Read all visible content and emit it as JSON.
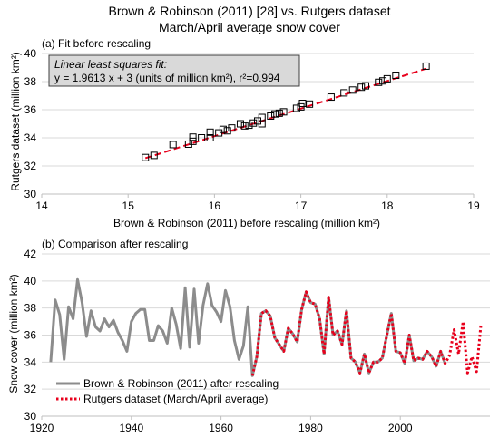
{
  "figure": {
    "title": "Brown & Robinson (2011) [28] vs. Rutgers dataset",
    "subtitle": "March/April average snow cover"
  },
  "chart_data": [
    {
      "id": "a",
      "type": "scatter",
      "panel_label": "(a) Fit before rescaling",
      "xlabel": "Brown & Robinson (2011) before rescaling (million km²)",
      "ylabel": "Rutgers dataset (million km²)",
      "xlim": [
        14,
        19
      ],
      "ylim": [
        30,
        40
      ],
      "xticks": [
        14,
        15,
        16,
        17,
        18,
        19
      ],
      "yticks": [
        30,
        32,
        34,
        36,
        38,
        40
      ],
      "grid": "horizontal",
      "annotation": {
        "line1": "Linear least squares fit:",
        "line2": "y = 1.9613 x + 3 (units of million km²), r²=0.994"
      },
      "fit": {
        "slope": 1.9613,
        "intercept": 3,
        "x_range": [
          15.2,
          18.45
        ],
        "color": "#e8001c"
      },
      "points": [
        [
          15.2,
          32.6
        ],
        [
          15.3,
          32.75
        ],
        [
          15.52,
          33.52
        ],
        [
          15.7,
          33.55
        ],
        [
          15.75,
          33.75
        ],
        [
          15.75,
          34.05
        ],
        [
          15.85,
          34.0
        ],
        [
          15.95,
          34.0
        ],
        [
          15.95,
          34.4
        ],
        [
          16.05,
          34.35
        ],
        [
          16.1,
          34.6
        ],
        [
          16.15,
          34.5
        ],
        [
          16.2,
          34.7
        ],
        [
          16.3,
          35.0
        ],
        [
          16.35,
          34.85
        ],
        [
          16.4,
          34.9
        ],
        [
          16.45,
          35.05
        ],
        [
          16.5,
          35.2
        ],
        [
          16.55,
          35.0
        ],
        [
          16.55,
          35.45
        ],
        [
          16.65,
          35.55
        ],
        [
          16.7,
          35.7
        ],
        [
          16.75,
          35.75
        ],
        [
          16.8,
          35.85
        ],
        [
          16.95,
          36.1
        ],
        [
          17.0,
          36.2
        ],
        [
          17.02,
          36.45
        ],
        [
          17.1,
          36.4
        ],
        [
          17.35,
          36.9
        ],
        [
          17.5,
          37.2
        ],
        [
          17.6,
          37.4
        ],
        [
          17.7,
          37.6
        ],
        [
          17.75,
          37.7
        ],
        [
          17.9,
          37.95
        ],
        [
          17.95,
          38.05
        ],
        [
          18.0,
          38.2
        ],
        [
          18.1,
          38.45
        ],
        [
          18.45,
          39.1
        ]
      ]
    },
    {
      "id": "b",
      "type": "line",
      "panel_label": "(b) Comparison after rescaling",
      "xlabel": "",
      "ylabel": "Snow cover (million km²)",
      "xlim": [
        1920,
        2020
      ],
      "ylim": [
        30,
        42
      ],
      "xticks": [
        1920,
        1940,
        1960,
        1980,
        2000
      ],
      "yticks": [
        30,
        32,
        34,
        36,
        38,
        40,
        42
      ],
      "grid": "horizontal",
      "legend_position": "bottom-left",
      "series": [
        {
          "name": "Brown & Robinson (2011) after rescaling",
          "color": "#8c8c8c",
          "style": "solid",
          "x": [
            1922,
            1923,
            1924,
            1925,
            1926,
            1927,
            1928,
            1929,
            1930,
            1931,
            1932,
            1933,
            1934,
            1935,
            1936,
            1937,
            1938,
            1939,
            1940,
            1941,
            1942,
            1943,
            1944,
            1945,
            1946,
            1947,
            1948,
            1949,
            1950,
            1951,
            1952,
            1953,
            1954,
            1955,
            1956,
            1957,
            1958,
            1959,
            1960,
            1961,
            1962,
            1963,
            1964,
            1965,
            1966,
            1967,
            1968,
            1969,
            1970,
            1971,
            1972,
            1973,
            1974,
            1975,
            1976,
            1977,
            1978,
            1979,
            1980,
            1981,
            1982,
            1983,
            1984,
            1985,
            1986,
            1987,
            1988,
            1989,
            1990,
            1991,
            1992,
            1993,
            1994,
            1995,
            1996,
            1997,
            1998,
            1999,
            2000,
            2001,
            2002,
            2003,
            2004,
            2005,
            2006,
            2007,
            2008,
            2009,
            2010
          ],
          "y": [
            34.0,
            38.6,
            37.5,
            34.2,
            38.1,
            37.2,
            40.1,
            38.4,
            35.9,
            37.8,
            36.6,
            36.3,
            37.2,
            36.6,
            37.1,
            36.2,
            35.6,
            34.8,
            37.0,
            37.6,
            37.9,
            37.9,
            35.6,
            35.6,
            36.7,
            36.3,
            35.4,
            38.0,
            36.8,
            35.0,
            39.5,
            35.1,
            39.4,
            35.4,
            38.2,
            39.8,
            38.2,
            37.7,
            37.0,
            39.3,
            38.1,
            35.6,
            34.2,
            35.2,
            38.1,
            33.0,
            34.4,
            37.6,
            37.8,
            37.4,
            35.8,
            35.3,
            34.8,
            36.5,
            36.1,
            35.5,
            37.9,
            39.2,
            38.4,
            38.3,
            37.2,
            34.6,
            38.8,
            36.0,
            36.3,
            35.3,
            37.8,
            34.3,
            34.0,
            33.2,
            34.6,
            33.2,
            34.0,
            34.0,
            34.3,
            36.0,
            37.6,
            34.8,
            34.7,
            33.9,
            36.0,
            34.1,
            34.3,
            34.2,
            34.8,
            34.4,
            33.7,
            34.8,
            33.9
          ]
        },
        {
          "name": "Rutgers dataset (March/April average)",
          "color": "#e8001c",
          "style": "dotted",
          "x": [
            1967,
            1968,
            1969,
            1970,
            1971,
            1972,
            1973,
            1974,
            1975,
            1976,
            1977,
            1978,
            1979,
            1980,
            1981,
            1982,
            1983,
            1984,
            1985,
            1986,
            1987,
            1988,
            1989,
            1990,
            1991,
            1992,
            1993,
            1994,
            1995,
            1996,
            1997,
            1998,
            1999,
            2000,
            2001,
            2002,
            2003,
            2004,
            2005,
            2006,
            2007,
            2008,
            2009,
            2010,
            2011,
            2012,
            2013,
            2014,
            2015,
            2016,
            2017,
            2018
          ],
          "y": [
            33.0,
            34.4,
            37.6,
            37.8,
            37.4,
            35.8,
            35.3,
            34.8,
            36.5,
            36.1,
            35.5,
            37.9,
            39.2,
            38.4,
            38.3,
            37.2,
            34.6,
            38.8,
            36.0,
            36.3,
            35.3,
            37.8,
            34.3,
            34.0,
            33.2,
            34.6,
            33.2,
            34.0,
            34.0,
            34.3,
            36.0,
            37.6,
            34.8,
            34.7,
            33.9,
            36.0,
            34.1,
            34.3,
            34.2,
            34.8,
            34.4,
            33.7,
            34.8,
            33.9,
            34.5,
            36.4,
            34.6,
            37.0,
            33.2,
            34.4,
            33.3,
            36.8
          ]
        }
      ]
    }
  ]
}
